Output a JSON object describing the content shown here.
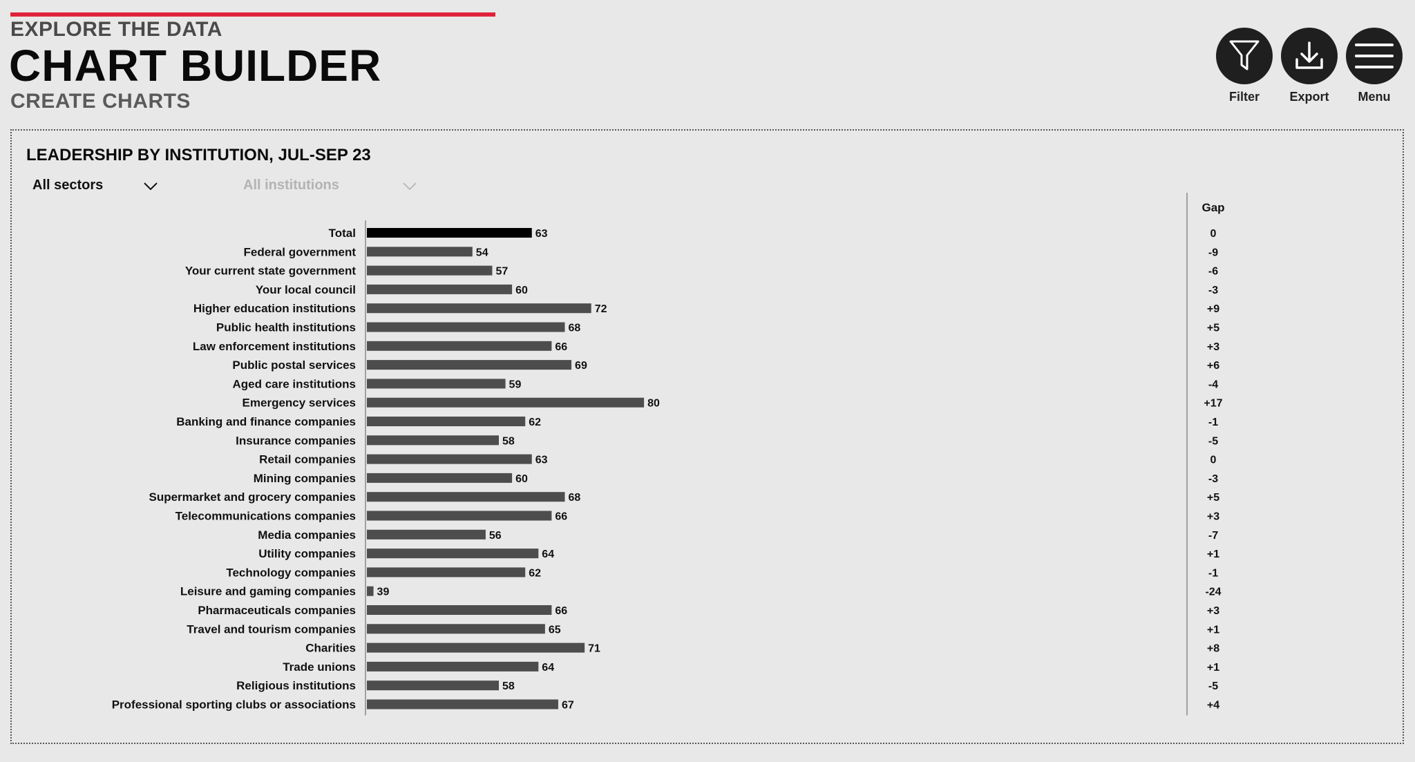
{
  "header": {
    "eyebrow": "EXPLORE THE DATA",
    "title": "CHART BUILDER",
    "subtitle": "CREATE CHARTS",
    "accent_color": "#e0223a"
  },
  "toolbar": {
    "filter_label": "Filter",
    "export_label": "Export",
    "menu_label": "Menu",
    "filter_icon": "filter-icon",
    "export_icon": "download-icon",
    "menu_icon": "hamburger-menu-icon"
  },
  "filters": {
    "sectors_value": "All sectors",
    "institutions_value": "All institutions"
  },
  "chart_data": {
    "type": "bar",
    "orientation": "horizontal",
    "title": "LEADERSHIP BY INSTITUTION, JUL-SEP 23",
    "gap_header": "Gap",
    "bar_color": "#4d4d4d",
    "highlight_color": "#000000",
    "highlight_category": "Total",
    "xlim": [
      0,
      100
    ],
    "categories": [
      "Total",
      "Federal government",
      "Your current state government",
      "Your local council",
      "Higher education institutions",
      "Public health institutions",
      "Law enforcement institutions",
      "Public postal services",
      "Aged care institutions",
      "Emergency services",
      "Banking and finance companies",
      "Insurance companies",
      "Retail companies",
      "Mining companies",
      "Supermarket and grocery companies",
      "Telecommunications companies",
      "Media companies",
      "Utility companies",
      "Technology companies",
      "Leisure and gaming companies",
      "Pharmaceuticals companies",
      "Travel and tourism companies",
      "Charities",
      "Trade unions",
      "Religious institutions",
      "Professional sporting clubs or associations"
    ],
    "values": [
      63,
      54,
      57,
      60,
      72,
      68,
      66,
      69,
      59,
      80,
      62,
      58,
      63,
      60,
      68,
      66,
      56,
      64,
      62,
      39,
      66,
      65,
      71,
      64,
      58,
      67
    ],
    "gaps": [
      "0",
      "-9",
      "-6",
      "-3",
      "+9",
      "+5",
      "+3",
      "+6",
      "-4",
      "+17",
      "-1",
      "-5",
      "0",
      "-3",
      "+5",
      "+3",
      "-7",
      "+1",
      "-1",
      "-24",
      "+3",
      "+1",
      "+8",
      "+1",
      "-5",
      "+4"
    ]
  }
}
